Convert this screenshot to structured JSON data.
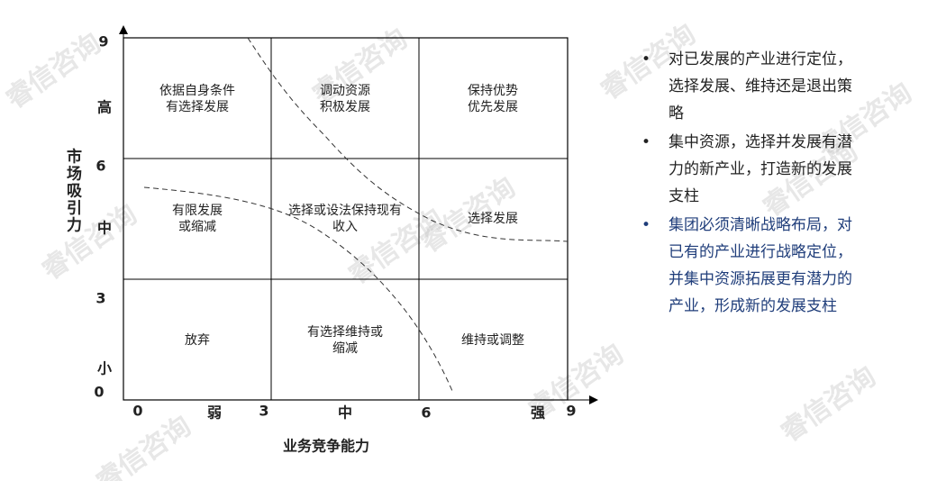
{
  "watermark": "睿信咨询",
  "y_axis": {
    "title": "市场吸引力",
    "labels": [
      "9",
      "高",
      "6",
      "中",
      "3",
      "小",
      "0"
    ]
  },
  "x_axis": {
    "title": "业务竞争能力",
    "labels": [
      "0",
      "弱",
      "3",
      "中",
      "6",
      "强",
      "9"
    ]
  },
  "cells": [
    [
      [
        "依据自身条件",
        "有选择发展"
      ],
      [
        "调动资源",
        "积极发展"
      ],
      [
        "保持优势",
        "优先发展"
      ]
    ],
    [
      [
        "有限发展",
        "或缩减"
      ],
      [
        "选择或设法保持现有",
        "收入"
      ],
      [
        "选择发展"
      ]
    ],
    [
      [
        "放弃"
      ],
      [
        "有选择维持或",
        "缩减"
      ],
      [
        "维持或调整"
      ]
    ]
  ],
  "bullets": [
    [
      "对已发展的产业进行定位，",
      "选择发展、维持还是退出策",
      "略"
    ],
    [
      "集中资源，选择并发展有潜",
      "力的新产业，打造新的发展",
      "支柱"
    ],
    [
      "集团必须清晰战略布局，对",
      "已有的产业进行战略定位，",
      "并集中资源拓展更有潜力的",
      "产业，形成新的发展支柱"
    ]
  ]
}
